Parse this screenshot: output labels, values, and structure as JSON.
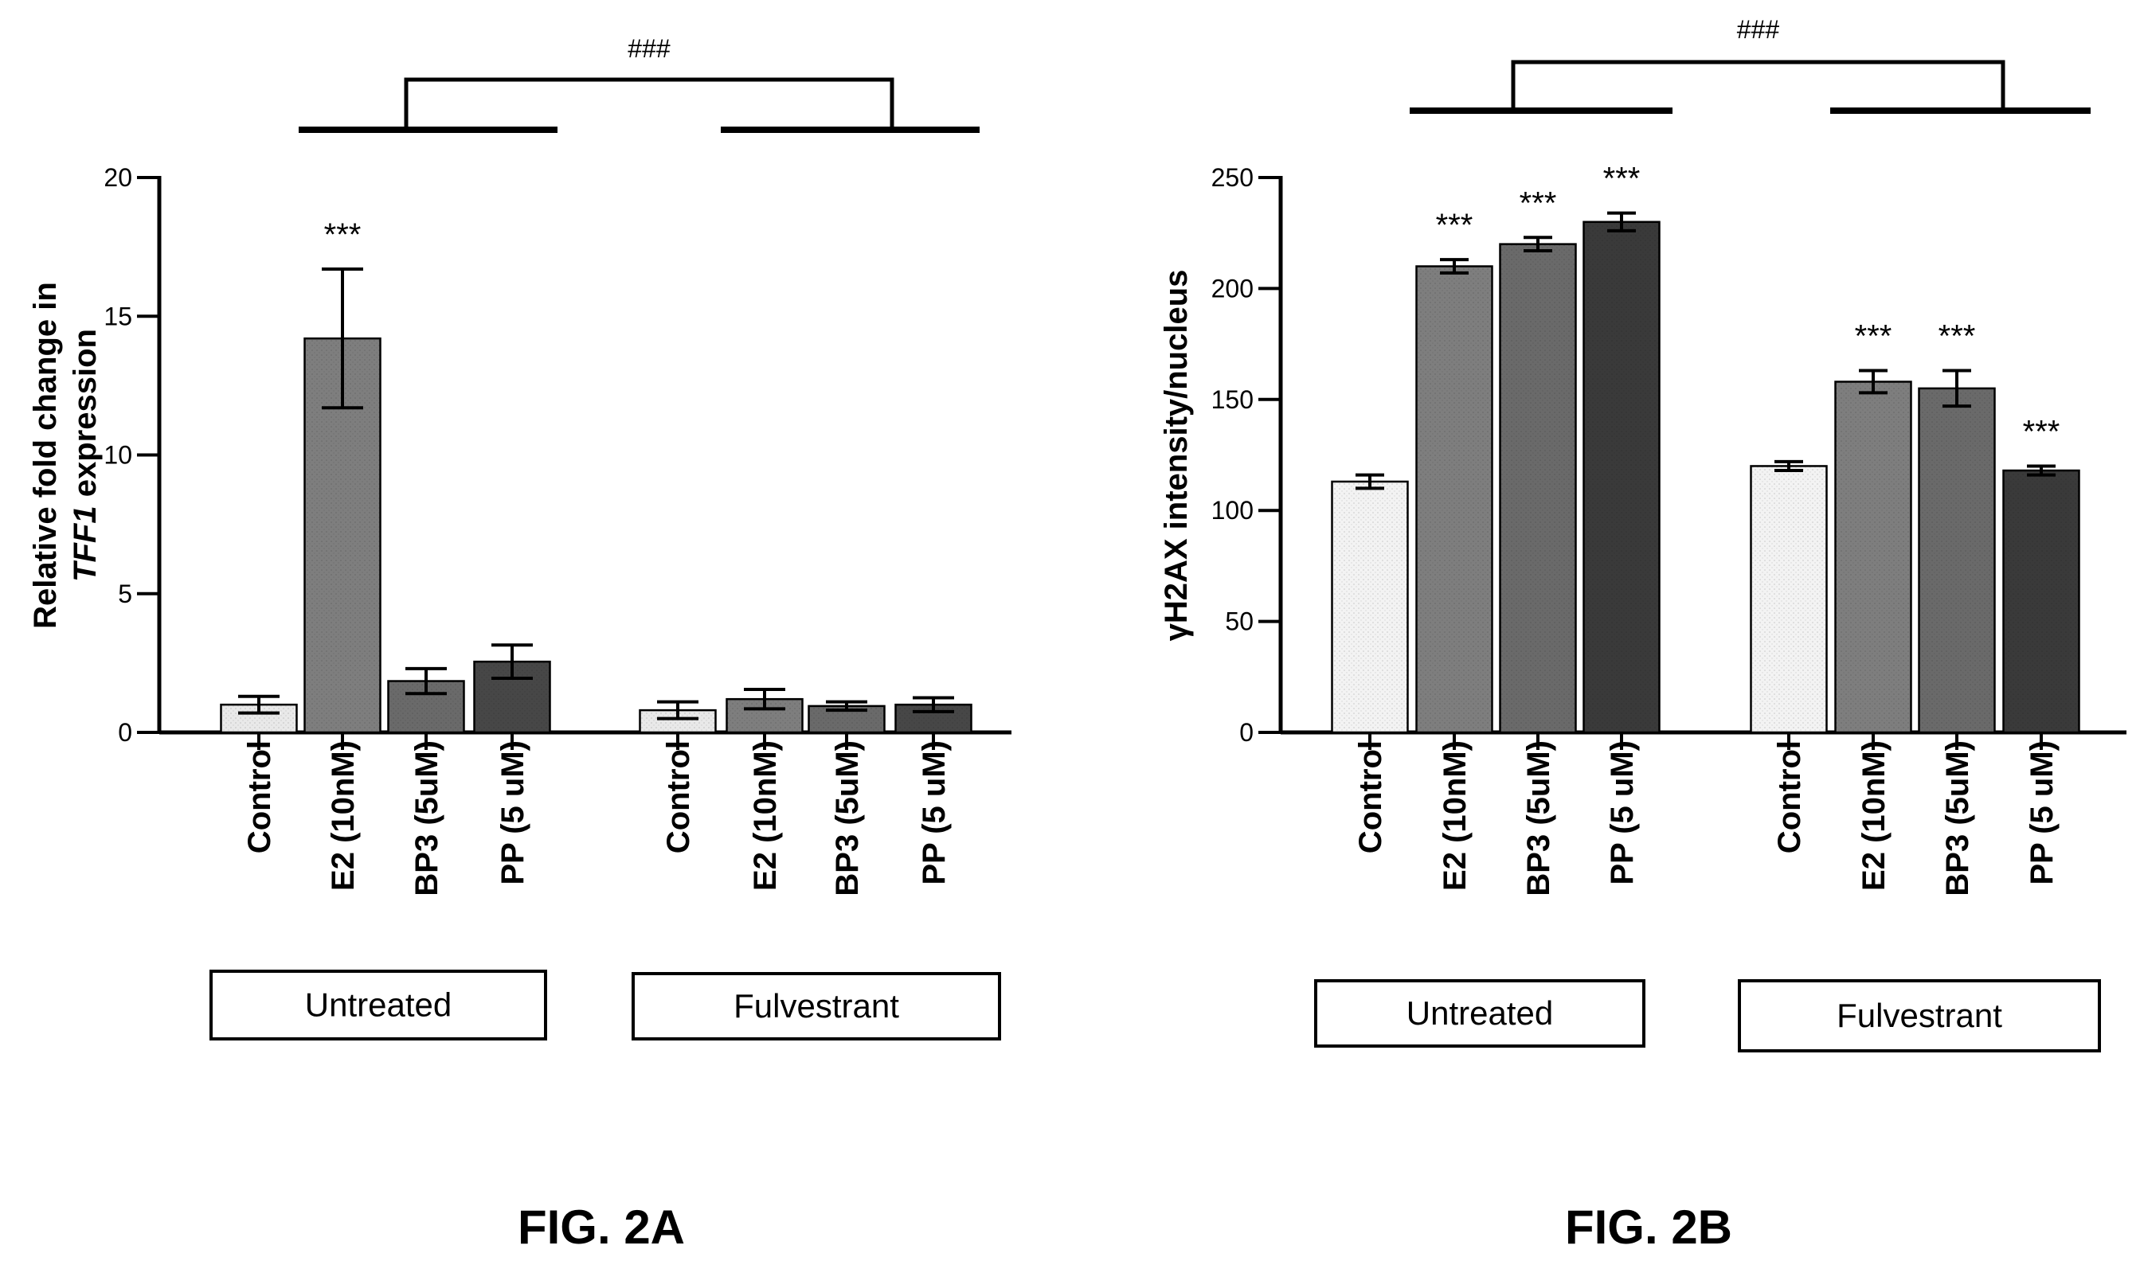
{
  "chart_data": [
    {
      "type": "bar",
      "caption": "FIG. 2A",
      "ylabel_parts": [
        "Relative fold change in",
        "TFF1",
        " expression"
      ],
      "ylim": [
        0,
        20
      ],
      "yticks": [
        0,
        5,
        10,
        15,
        20
      ],
      "groups": [
        {
          "name": "Untreated",
          "categories": [
            "Control",
            "E2 (10nM)",
            "BP3 (5uM)",
            "PP (5 uM)"
          ],
          "values": [
            1.0,
            14.2,
            1.85,
            2.55
          ],
          "errors": [
            0.3,
            2.5,
            0.45,
            0.6
          ],
          "significance": [
            "",
            "***",
            "",
            ""
          ]
        },
        {
          "name": "Fulvestrant",
          "categories": [
            "Control",
            "E2 (10nM)",
            "BP3 (5uM)",
            "PP (5 uM)"
          ],
          "values": [
            0.8,
            1.2,
            0.95,
            1.0
          ],
          "errors": [
            0.3,
            0.35,
            0.15,
            0.25
          ],
          "significance": [
            "",
            "",
            "",
            ""
          ]
        }
      ],
      "group_comparison": "###",
      "colors": [
        "#e9e9e9",
        "#7e7e7e",
        "#6a6a6a",
        "#474747"
      ]
    },
    {
      "type": "bar",
      "caption": "FIG. 2B",
      "ylabel_parts": [
        "γH2AX intensity/nucleus"
      ],
      "ylim": [
        0,
        250
      ],
      "yticks": [
        0,
        50,
        100,
        150,
        200,
        250
      ],
      "groups": [
        {
          "name": "Untreated",
          "categories": [
            "Control",
            "E2 (10nM)",
            "BP3 (5uM)",
            "PP (5 uM)"
          ],
          "values": [
            113,
            210,
            220,
            230
          ],
          "errors": [
            3,
            3,
            3,
            4
          ],
          "significance": [
            "",
            "***",
            "***",
            "***"
          ]
        },
        {
          "name": "Fulvestrant",
          "categories": [
            "Control",
            "E2 (10nM)",
            "BP3 (5uM)",
            "PP (5 uM)"
          ],
          "values": [
            120,
            158,
            155,
            118
          ],
          "errors": [
            2,
            5,
            8,
            2
          ],
          "significance": [
            "",
            "***",
            "***",
            "***"
          ]
        }
      ],
      "group_comparison": "###",
      "colors": [
        "#f3f3f3",
        "#7e7e7e",
        "#6a6a6a",
        "#3a3a3a"
      ]
    }
  ]
}
